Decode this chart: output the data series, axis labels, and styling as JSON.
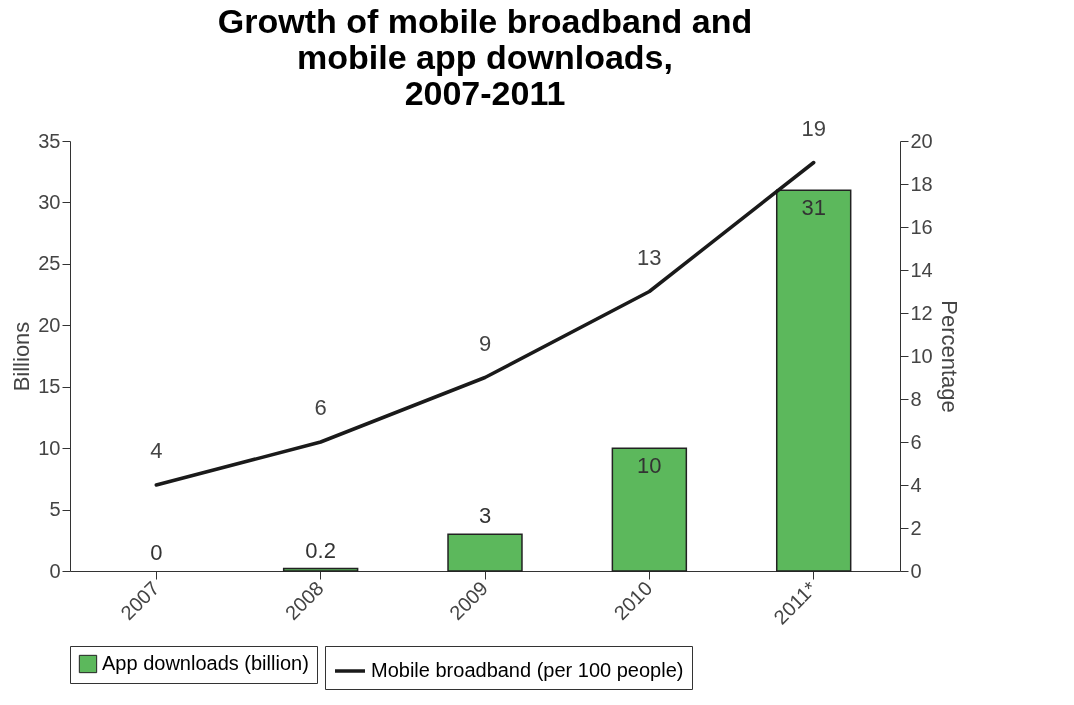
{
  "chart_data": {
    "type": "bar",
    "title": "Growth of mobile broadband and mobile app downloads, 2007-2011",
    "categories": [
      "2007",
      "2008",
      "2009",
      "2010",
      "2011*"
    ],
    "ylabel": "Billions",
    "y2label": "Percentage",
    "ylim": [
      0,
      35
    ],
    "yticks": [
      0,
      5,
      10,
      15,
      20,
      25,
      30,
      35
    ],
    "y2lim": [
      0,
      20
    ],
    "y2ticks": [
      0,
      2,
      4,
      6,
      8,
      10,
      12,
      14,
      16,
      18,
      20
    ],
    "data_labels": true,
    "legend": "bottom",
    "series": [
      {
        "name": "App downloads (billion)",
        "color": "#5cb85c",
        "values": [
          0,
          0.2,
          3,
          10,
          31
        ]
      },
      {
        "name": "Mobile broadband (per 100 people)",
        "type": "line",
        "axis": "y2",
        "color": "#1a1a1a",
        "values": [
          4,
          6,
          9,
          13,
          19
        ]
      }
    ]
  }
}
